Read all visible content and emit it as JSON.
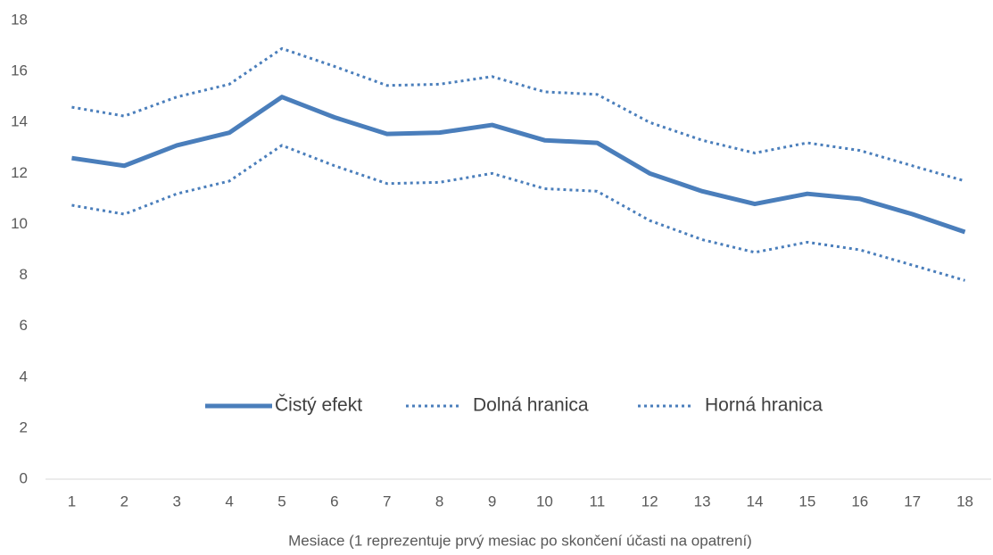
{
  "chart_data": {
    "type": "line",
    "x_label": "Mesiace (1 reprezentuje prvý mesiac po skončení účasti na opatrení)",
    "x": [
      1,
      2,
      3,
      4,
      5,
      6,
      7,
      8,
      9,
      10,
      11,
      12,
      13,
      14,
      15,
      16,
      17,
      18
    ],
    "xlim": [
      0.5,
      18.5
    ],
    "xticks": [
      1,
      2,
      3,
      4,
      5,
      6,
      7,
      8,
      9,
      10,
      11,
      12,
      13,
      14,
      15,
      16,
      17,
      18
    ],
    "ylim": [
      0,
      18
    ],
    "yticks": [
      0,
      2,
      4,
      6,
      8,
      10,
      12,
      14,
      16,
      18
    ],
    "grid": false,
    "legend": "center",
    "series": [
      {
        "name": "Čistý efekt",
        "color": "#4a7ebb",
        "dash": "solid",
        "values": [
          12.6,
          12.3,
          13.1,
          13.6,
          15.0,
          14.2,
          13.55,
          13.6,
          13.9,
          13.3,
          13.2,
          12.0,
          11.3,
          10.8,
          11.2,
          11.0,
          10.4,
          9.7
        ]
      },
      {
        "name": "Dolná hranica",
        "color": "#4a7ebb",
        "dash": "dotted",
        "values": [
          10.75,
          10.4,
          11.2,
          11.7,
          13.1,
          12.3,
          11.6,
          11.65,
          12.0,
          11.4,
          11.3,
          10.15,
          9.4,
          8.9,
          9.3,
          9.0,
          8.4,
          7.8
        ]
      },
      {
        "name": "Horná hranica",
        "color": "#4a7ebb",
        "dash": "dotted",
        "values": [
          14.6,
          14.25,
          15.0,
          15.5,
          16.9,
          16.2,
          15.45,
          15.5,
          15.8,
          15.2,
          15.1,
          14.0,
          13.3,
          12.8,
          13.2,
          12.9,
          12.3,
          11.7
        ]
      }
    ]
  }
}
